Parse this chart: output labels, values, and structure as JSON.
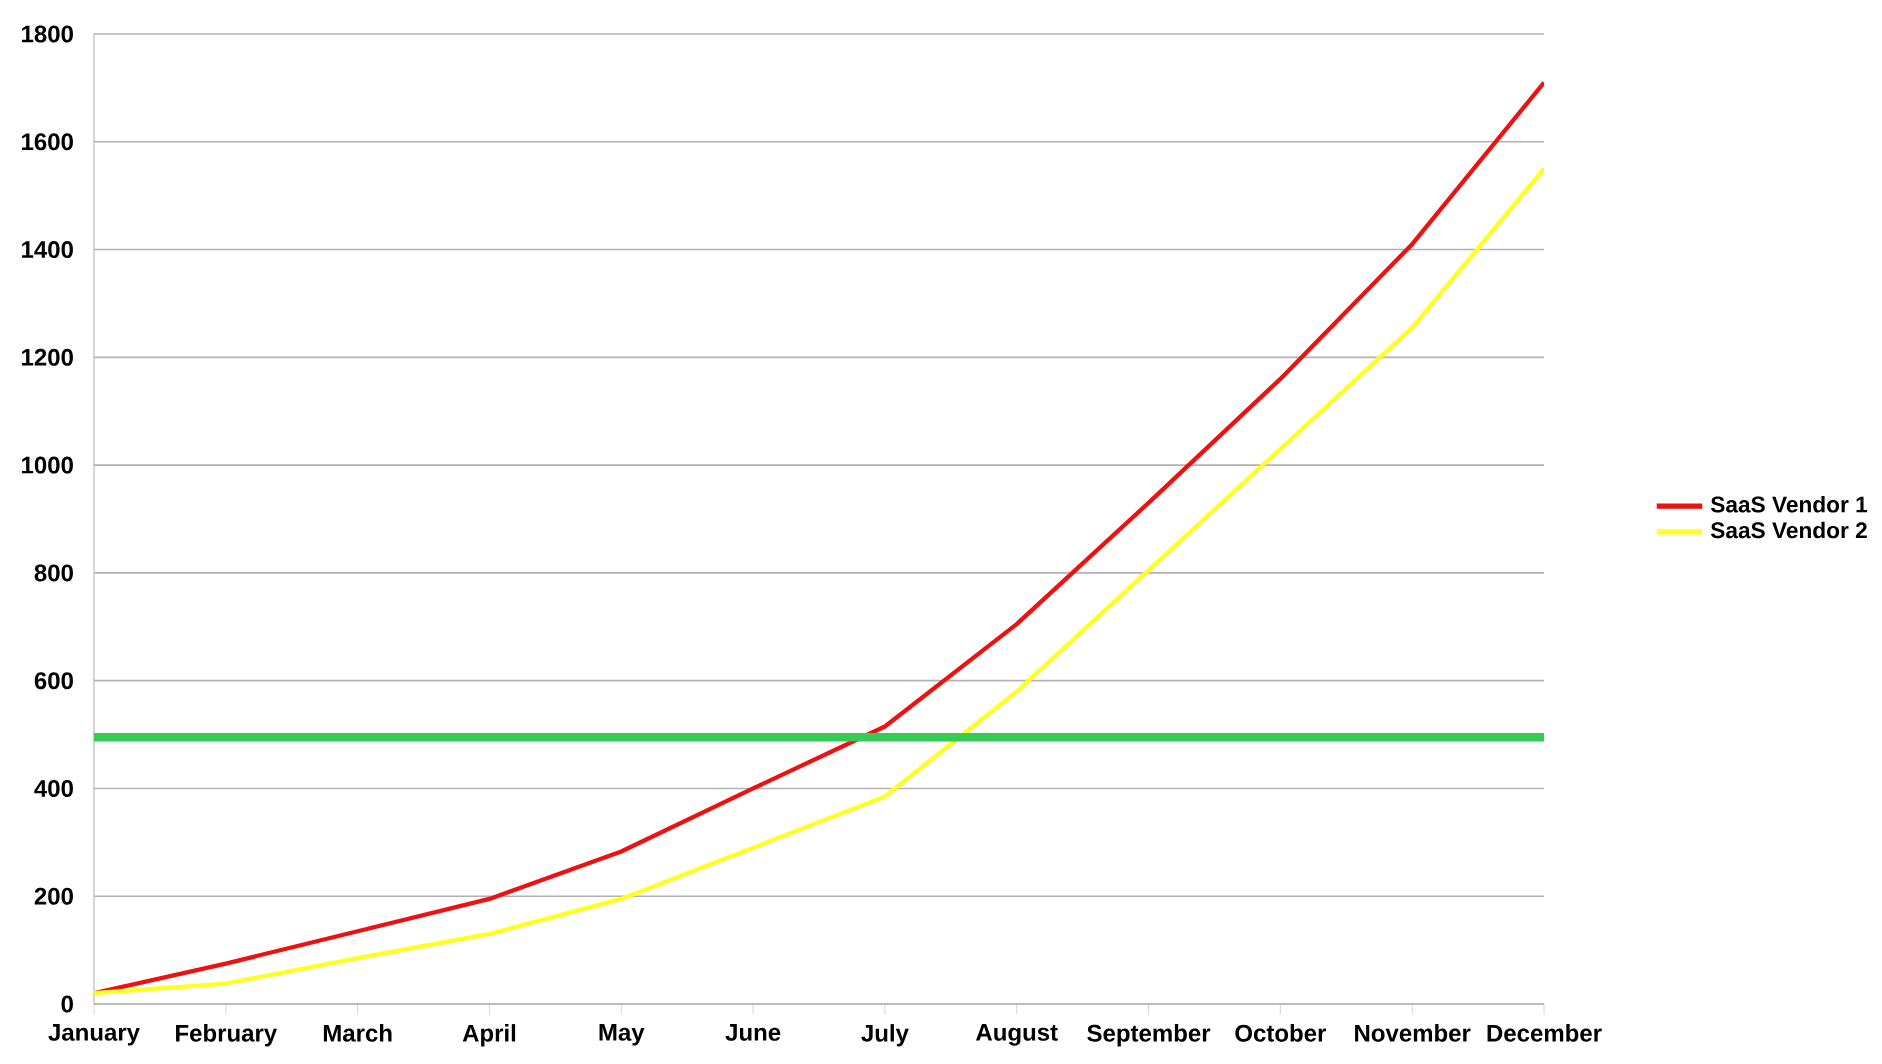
{
  "chart_data": {
    "type": "line",
    "categories": [
      "January",
      "February",
      "March",
      "April",
      "May",
      "June",
      "July",
      "August",
      "September",
      "October",
      "November",
      "December"
    ],
    "series": [
      {
        "name": "SaaS Vendor 1",
        "color": "#ee1111",
        "values": [
          20,
          75,
          135,
          195,
          283,
          400,
          515,
          705,
          930,
          1160,
          1410,
          1710
        ]
      },
      {
        "name": "SaaS Vendor 2",
        "color": "#ffff22",
        "values": [
          20,
          38,
          85,
          130,
          195,
          290,
          385,
          580,
          805,
          1030,
          1255,
          1550
        ]
      },
      {
        "color": "#33cc55",
        "values": [
          495,
          495,
          495,
          495,
          495,
          495,
          495,
          495,
          495,
          495,
          495,
          495
        ]
      }
    ],
    "ylim": [
      0,
      1800
    ],
    "yticks": [
      0,
      200,
      400,
      600,
      800,
      1000,
      1200,
      1400,
      1600,
      1800
    ],
    "grid": "y",
    "legend": "right",
    "marker": "none",
    "line_style": "solid"
  }
}
